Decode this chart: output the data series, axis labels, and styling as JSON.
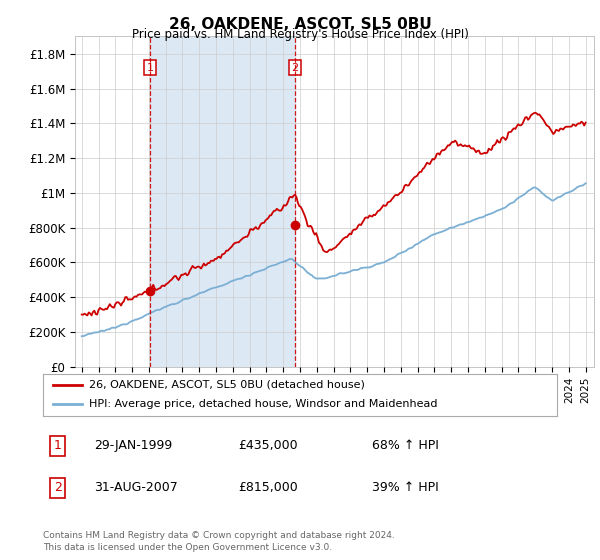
{
  "title": "26, OAKDENE, ASCOT, SL5 0BU",
  "subtitle": "Price paid vs. HM Land Registry's House Price Index (HPI)",
  "footer_line1": "Contains HM Land Registry data © Crown copyright and database right 2024.",
  "footer_line2": "This data is licensed under the Open Government Licence v3.0.",
  "legend_entry1": "26, OAKDENE, ASCOT, SL5 0BU (detached house)",
  "legend_entry2": "HPI: Average price, detached house, Windsor and Maidenhead",
  "transaction1_label": "1",
  "transaction1_date": "29-JAN-1999",
  "transaction1_price": "£435,000",
  "transaction1_hpi": "68% ↑ HPI",
  "transaction2_label": "2",
  "transaction2_date": "31-AUG-2007",
  "transaction2_price": "£815,000",
  "transaction2_hpi": "39% ↑ HPI",
  "property_color": "#cc0000",
  "hpi_color": "#7bafd4",
  "vline_color": "#cc0000",
  "shade_color": "#dde8f5",
  "background_color": "#ffffff",
  "grid_color": "#cccccc",
  "ylim": [
    0,
    1900000
  ],
  "yticks": [
    0,
    200000,
    400000,
    600000,
    800000,
    1000000,
    1200000,
    1400000,
    1600000,
    1800000
  ],
  "ytick_labels": [
    "£0",
    "£200K",
    "£400K",
    "£600K",
    "£800K",
    "£1M",
    "£1.2M",
    "£1.4M",
    "£1.6M",
    "£1.8M"
  ],
  "transaction1_year": 1999.08,
  "transaction1_value": 435000,
  "transaction2_year": 2007.67,
  "transaction2_value": 815000
}
